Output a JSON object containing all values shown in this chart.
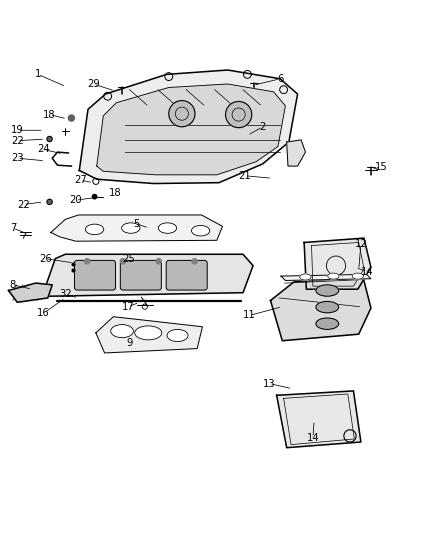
{
  "title": "",
  "background_color": "#ffffff",
  "line_color": "#000000",
  "figsize": [
    4.38,
    5.33
  ],
  "dpi": 100,
  "labels": {
    "1": [
      0.085,
      0.94,
      0.15,
      0.912
    ],
    "2": [
      0.6,
      0.82,
      0.565,
      0.8
    ],
    "5": [
      0.31,
      0.598,
      0.34,
      0.588
    ],
    "6": [
      0.64,
      0.93,
      0.578,
      0.915
    ],
    "7": [
      0.028,
      0.588,
      0.058,
      0.576
    ],
    "8": [
      0.028,
      0.458,
      0.072,
      0.448
    ],
    "9": [
      0.295,
      0.325,
      0.3,
      0.342
    ],
    "11": [
      0.57,
      0.388,
      0.645,
      0.408
    ],
    "12": [
      0.825,
      0.552,
      0.82,
      0.492
    ],
    "13": [
      0.615,
      0.232,
      0.668,
      0.22
    ],
    "14a": [
      0.84,
      0.488,
      0.812,
      0.498
    ],
    "14b": [
      0.715,
      0.108,
      0.718,
      0.148
    ],
    "15": [
      0.872,
      0.728,
      0.848,
      0.722
    ],
    "16": [
      0.098,
      0.393,
      0.148,
      0.428
    ],
    "17": [
      0.292,
      0.408,
      0.318,
      0.418
    ],
    "18a": [
      0.112,
      0.848,
      0.152,
      0.838
    ],
    "18b": [
      0.262,
      0.668,
      0.258,
      0.672
    ],
    "19": [
      0.038,
      0.812,
      0.098,
      0.812
    ],
    "20": [
      0.172,
      0.652,
      0.218,
      0.658
    ],
    "21": [
      0.558,
      0.708,
      0.622,
      0.702
    ],
    "22a": [
      0.038,
      0.788,
      0.102,
      0.792
    ],
    "22b": [
      0.052,
      0.642,
      0.098,
      0.648
    ],
    "23": [
      0.038,
      0.748,
      0.102,
      0.742
    ],
    "24": [
      0.098,
      0.768,
      0.142,
      0.758
    ],
    "25": [
      0.292,
      0.518,
      0.308,
      0.512
    ],
    "26": [
      0.102,
      0.518,
      0.168,
      0.508
    ],
    "27": [
      0.182,
      0.698,
      0.212,
      0.692
    ],
    "29": [
      0.212,
      0.918,
      0.262,
      0.902
    ],
    "32": [
      0.148,
      0.436,
      0.178,
      0.428
    ]
  }
}
